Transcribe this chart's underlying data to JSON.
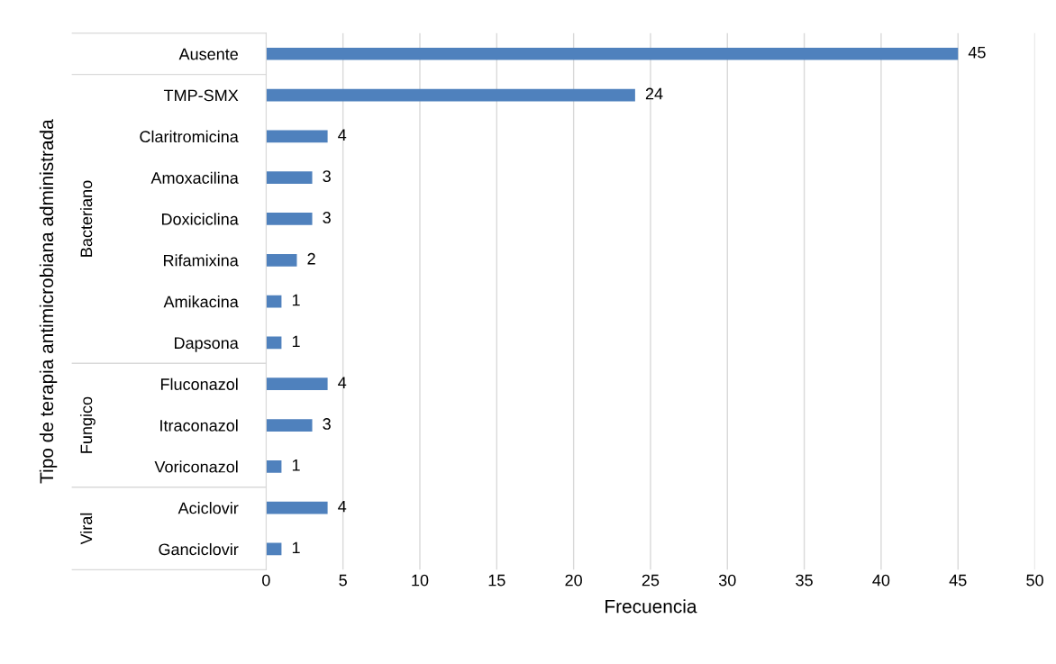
{
  "chart_data": {
    "type": "bar",
    "orientation": "horizontal",
    "xlabel": "Frecuencia",
    "ylabel": "Tipo de terapia antimicrobiana administrada",
    "categories": [
      "Ausente",
      "TMP-SMX",
      "Claritromicina",
      "Amoxacilina",
      "Doxiciclina",
      "Rifamixina",
      "Amikacina",
      "Dapsona",
      "Fluconazol",
      "Itraconazol",
      "Voriconazol",
      "Aciclovir",
      "Ganciclovir"
    ],
    "values": [
      45,
      24,
      4,
      3,
      3,
      2,
      1,
      1,
      4,
      3,
      1,
      4,
      1
    ],
    "color": "#4f81bd",
    "xlim": [
      0,
      50
    ],
    "xticks": [
      0,
      5,
      10,
      15,
      20,
      25,
      30,
      35,
      40,
      45,
      50
    ],
    "grid": "x",
    "data_labels": true,
    "annotations": [
      "Bacteriano",
      "Fungico",
      "Viral"
    ]
  }
}
